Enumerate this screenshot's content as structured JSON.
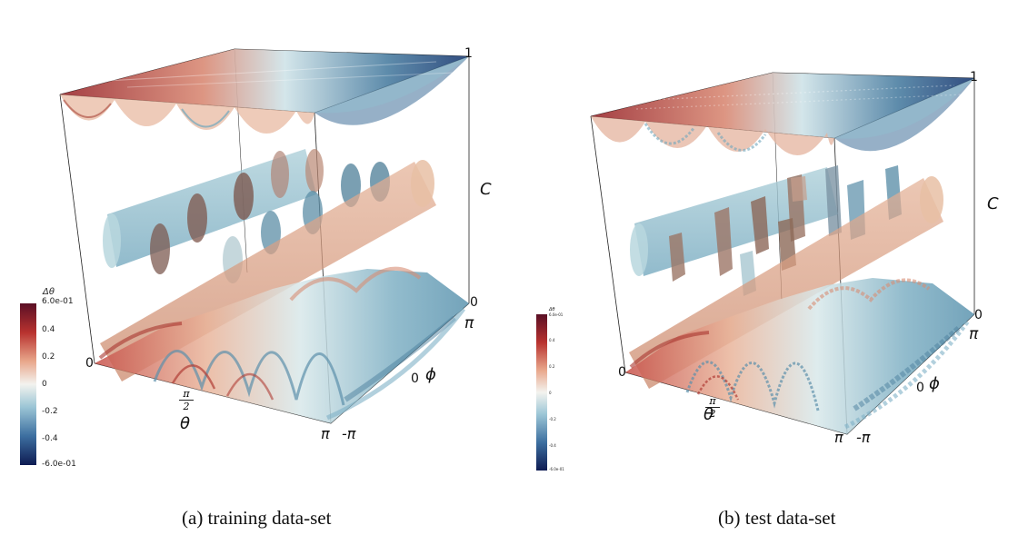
{
  "panels": [
    {
      "caption": "(a)  training data-set",
      "axes": {
        "c_label": "C",
        "c_top": "1",
        "c_bottom": "0",
        "phi_label": "ϕ",
        "phi_top": "π",
        "phi_mid": "0",
        "phi_bottom": "-π",
        "theta_label": "θ",
        "theta_start": "0",
        "theta_end": "π",
        "theta_mid_num": "π",
        "theta_mid_den": "2"
      },
      "colorbar": {
        "title": "Δθ",
        "ticks": [
          "6.0e-01",
          "0.4",
          "0.2",
          "0",
          "-0.2",
          "-0.4",
          "-6.0e-01"
        ]
      }
    },
    {
      "caption": "(b)  test data-set",
      "axes": {
        "c_label": "C",
        "c_top": "1",
        "c_bottom": "0",
        "phi_label": "ϕ",
        "phi_top": "π",
        "phi_mid": "0",
        "phi_bottom": "-π",
        "theta_label": "θ",
        "theta_start": "0",
        "theta_end": "π",
        "theta_mid_num": "π",
        "theta_mid_den": "2"
      },
      "colorbar": {
        "title": "Δθ",
        "ticks": [
          "6.0e-01",
          "0.4",
          "0.2",
          "0",
          "-0.2",
          "-0.4",
          "-6.0e-01"
        ]
      }
    }
  ],
  "colors": {
    "deep_red": "#6d0f23",
    "red": "#c0504a",
    "salmon": "#e4a487",
    "light": "#eef2ee",
    "cyan": "#9cc6d2",
    "blue": "#4f86a4",
    "navy": "#11225b"
  }
}
